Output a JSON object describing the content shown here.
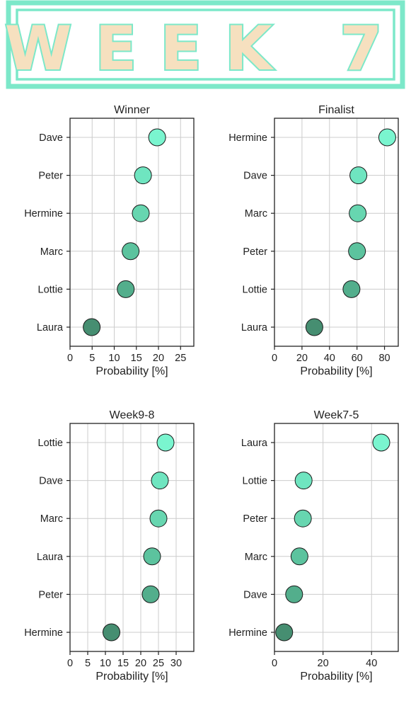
{
  "banner": {
    "title": "WEEK 7",
    "fill_color": "#f6e0bf",
    "stroke_color": "#7ce8c9",
    "frame_color": "#7ce8c9"
  },
  "chart_data": [
    {
      "type": "scatter",
      "title": "Winner",
      "xlabel": "Probability [%]",
      "xlim": [
        0,
        28
      ],
      "xticks": [
        0,
        5,
        10,
        15,
        20,
        25
      ],
      "categories": [
        "Dave",
        "Peter",
        "Hermine",
        "Marc",
        "Lottie",
        "Laura"
      ],
      "values": [
        19.7,
        16.5,
        16.0,
        13.7,
        12.6,
        4.9
      ],
      "grid": true
    },
    {
      "type": "scatter",
      "title": "Finalist",
      "xlabel": "Probability [%]",
      "xlim": [
        0,
        90
      ],
      "xticks": [
        0,
        20,
        40,
        60,
        80
      ],
      "categories": [
        "Hermine",
        "Dave",
        "Marc",
        "Peter",
        "Lottie",
        "Laura"
      ],
      "values": [
        82,
        61,
        60.5,
        60,
        56,
        29
      ],
      "grid": true
    },
    {
      "type": "scatter",
      "title": "Week9-8",
      "xlabel": "Probability [%]",
      "xlim": [
        0,
        35
      ],
      "xticks": [
        0,
        5,
        10,
        15,
        20,
        25,
        30
      ],
      "categories": [
        "Lottie",
        "Dave",
        "Marc",
        "Laura",
        "Peter",
        "Hermine"
      ],
      "values": [
        27,
        25.4,
        25,
        23.2,
        22.8,
        11.7
      ],
      "grid": true
    },
    {
      "type": "scatter",
      "title": "Week7-5",
      "xlabel": "Probability [%]",
      "xlim": [
        0,
        51
      ],
      "xticks": [
        0,
        20,
        40
      ],
      "categories": [
        "Laura",
        "Lottie",
        "Peter",
        "Marc",
        "Dave",
        "Hermine"
      ],
      "values": [
        44,
        12,
        11.7,
        10.3,
        8.1,
        4
      ],
      "grid": true
    }
  ],
  "colors": {
    "point_palette": [
      "#7af5cf",
      "#6fe5c0",
      "#67d6b0",
      "#5cc39e",
      "#53ae8c",
      "#468e71"
    ],
    "grid": "#cccccc",
    "frame": "#222222"
  }
}
